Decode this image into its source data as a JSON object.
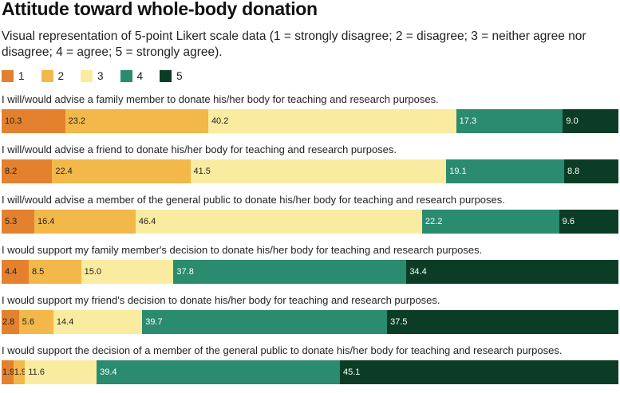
{
  "title": "Attitude toward whole-body donation",
  "subtitle": "Visual representation of 5-point Likert scale data (1 = strongly disagree; 2 = disagree; 3 = neither agree nor disagree; 4 = agree; 5 = strongly agree).",
  "colors": [
    "#e4812e",
    "#f3b84a",
    "#f9eca0",
    "#2a8b6e",
    "#0b3d26"
  ],
  "label_colors": [
    "#222222",
    "#222222",
    "#222222",
    "#ffffff",
    "#ffffff"
  ],
  "chart_data": {
    "type": "bar",
    "orientation": "horizontal",
    "stacked": true,
    "grid": false,
    "legend_position": "top-left",
    "legend": [
      "1",
      "2",
      "3",
      "4",
      "5"
    ],
    "categories": [
      "I will/would advise a family member to donate his/her body for teaching and research purposes.",
      "I will/would advise a friend to donate his/her body for teaching and research purposes.",
      "I will/would advise a member of the general public to donate his/her body for teaching and research purposes.",
      "I would support my family member's decision to donate his/her body for teaching and research purposes.",
      "I would support my friend's decision to donate his/her body for teaching and research purposes.",
      "I would support the decision of a member of the general public to donate his/her body for teaching and research purposes."
    ],
    "series": [
      {
        "name": "1",
        "values": [
          "10.3",
          "8.2",
          "5.3",
          "4.4",
          "2.8",
          "1.9"
        ]
      },
      {
        "name": "2",
        "values": [
          "23.2",
          "22.4",
          "16.4",
          "8.5",
          "5.6",
          "1.9"
        ]
      },
      {
        "name": "3",
        "values": [
          "40.2",
          "41.5",
          "46.4",
          "15.0",
          "14.4",
          "11.6"
        ]
      },
      {
        "name": "4",
        "values": [
          "17.3",
          "19.1",
          "22.2",
          "37.8",
          "39.7",
          "39.4"
        ]
      },
      {
        "name": "5",
        "values": [
          "9.0",
          "8.8",
          "9.6",
          "34.4",
          "37.5",
          "45.1"
        ]
      }
    ]
  }
}
